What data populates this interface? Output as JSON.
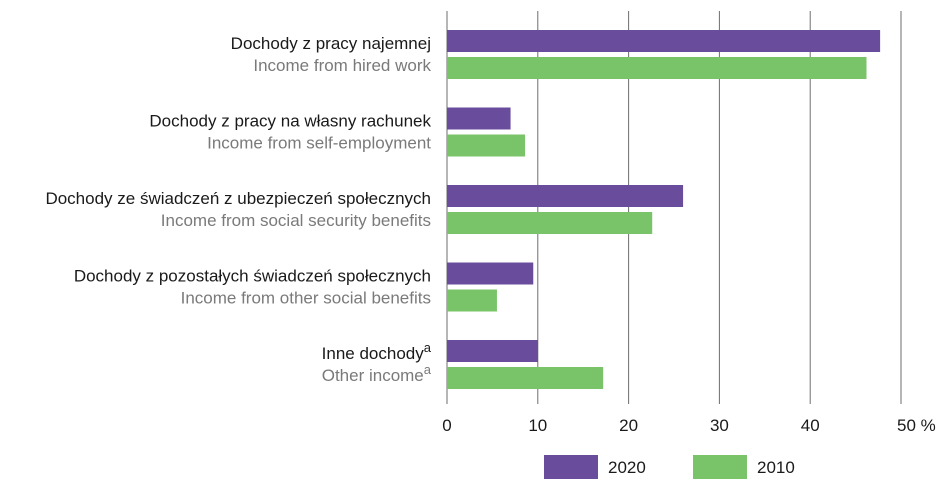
{
  "chart_data": {
    "type": "bar",
    "orientation": "horizontal",
    "categories": [
      {
        "label_pl": "Dochody z pracy najemnej",
        "label_en": "Income from hired work",
        "footnote": ""
      },
      {
        "label_pl": "Dochody z pracy na własny rachunek",
        "label_en": "Income from self-employment",
        "footnote": ""
      },
      {
        "label_pl": "Dochody ze świadczeń z ubezpieczeń społecznych",
        "label_en": "Income from social security benefits",
        "footnote": ""
      },
      {
        "label_pl": "Dochody z pozostałych świadczeń społecznych",
        "label_en": "Income from other social benefits",
        "footnote": ""
      },
      {
        "label_pl": "Inne dochody",
        "label_en": "Other income",
        "footnote": "a"
      }
    ],
    "series": [
      {
        "name": "2020",
        "color": "#6a4c9c",
        "values": [
          47.7,
          7.0,
          26.0,
          9.5,
          10.0
        ]
      },
      {
        "name": "2010",
        "color": "#79c468",
        "values": [
          46.2,
          8.6,
          22.6,
          5.5,
          17.2
        ]
      }
    ],
    "x_ticks": [
      "0",
      "10",
      "20",
      "30",
      "40",
      "50 %"
    ],
    "xlim": [
      0,
      50
    ],
    "grid": true,
    "legend_position": "bottom"
  }
}
